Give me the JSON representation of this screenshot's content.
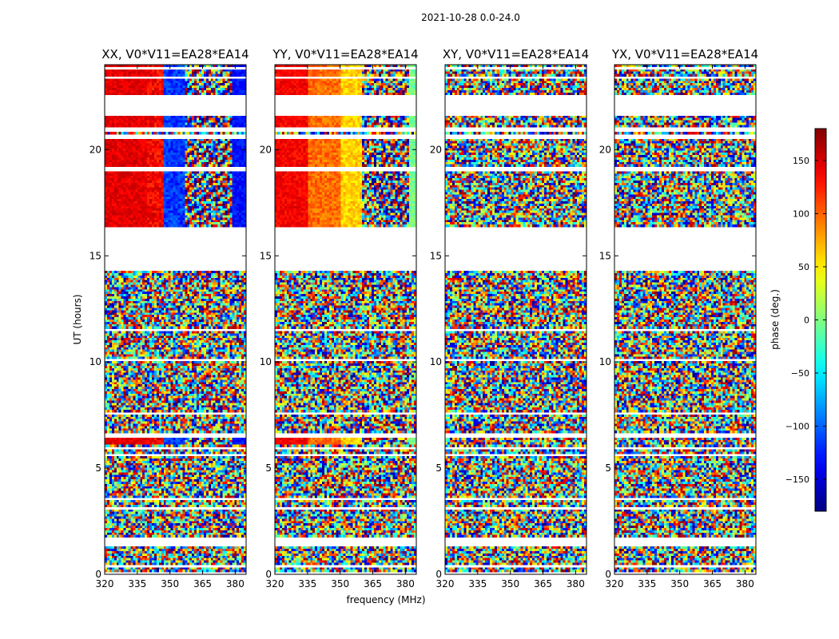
{
  "chart_data": {
    "type": "heatmap",
    "suptitle": "2021-10-28 0.0-24.0",
    "xlabel": "frequency (MHz)",
    "ylabel": "UT (hours)",
    "xlim": [
      320,
      385
    ],
    "ylim": [
      0,
      24
    ],
    "xticks": [
      "320",
      "335",
      "350",
      "365",
      "380"
    ],
    "yticks": [
      "0",
      "5",
      "10",
      "15",
      "20"
    ],
    "panels": [
      {
        "title": "XX, V0*V11=EA28*EA14",
        "mode": "xx"
      },
      {
        "title": "YY, V0*V11=EA28*EA14",
        "mode": "yy"
      },
      {
        "title": "XY, V0*V11=EA28*EA14",
        "mode": "noise"
      },
      {
        "title": "YX, V0*V11=EA28*EA14",
        "mode": "noise"
      }
    ],
    "flagged_time_ranges_hours": [
      [
        0.0,
        0.1
      ],
      [
        0.35,
        0.45
      ],
      [
        1.35,
        1.6
      ],
      [
        1.65,
        1.75
      ],
      [
        3.05,
        3.15
      ],
      [
        3.45,
        3.55
      ],
      [
        5.55,
        5.65
      ],
      [
        5.9,
        6.0
      ],
      [
        6.4,
        6.5
      ],
      [
        6.6,
        6.7
      ],
      [
        7.55,
        7.6
      ],
      [
        9.55,
        9.6
      ],
      [
        10.05,
        10.1
      ],
      [
        11.45,
        11.55
      ],
      [
        13.15,
        13.2
      ],
      [
        13.95,
        14.0
      ],
      [
        14.3,
        14.35
      ],
      [
        14.45,
        16.0
      ],
      [
        16.05,
        16.1
      ],
      [
        16.2,
        16.25
      ],
      [
        16.3,
        16.35
      ],
      [
        18.95,
        19.2
      ],
      [
        20.5,
        20.7
      ],
      [
        20.85,
        21.0
      ],
      [
        21.55,
        22.6
      ],
      [
        23.3,
        23.4
      ],
      [
        23.75,
        23.85
      ]
    ],
    "colorbar": {
      "label": "phase (deg.)",
      "range": [
        -180,
        180
      ],
      "ticks": [
        "150",
        "100",
        "50",
        "0",
        "−50",
        "−100",
        "−150"
      ],
      "tick_values": [
        150,
        100,
        50,
        0,
        -50,
        -100,
        -150
      ],
      "colormap": "jet"
    }
  }
}
